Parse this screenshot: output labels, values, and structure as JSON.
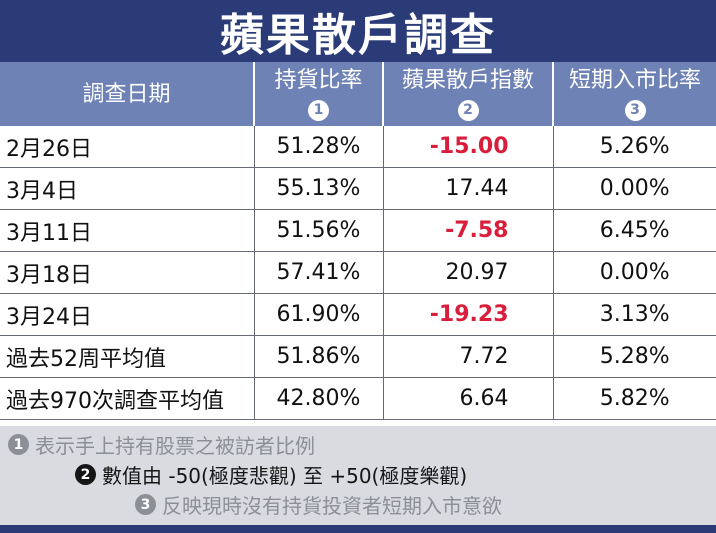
{
  "title": "蘋果散戶調查",
  "colors": {
    "title_bg": "#2a3b78",
    "header_bg": "#6e82b5",
    "negative": "#d81e3b",
    "notes_bg": "#d9dbe1"
  },
  "headers": [
    {
      "label": "調查日期",
      "badge": ""
    },
    {
      "label": "持貨比率",
      "badge": "1"
    },
    {
      "label": "蘋果散戶指數",
      "badge": "2"
    },
    {
      "label": "短期入市比率",
      "badge": "3"
    }
  ],
  "rows": [
    {
      "date": "2月26日",
      "holding": "51.28%",
      "index": "-15.00",
      "entry": "5.26%"
    },
    {
      "date": "3月4日",
      "holding": "55.13%",
      "index": "17.44",
      "entry": "0.00%"
    },
    {
      "date": "3月11日",
      "holding": "51.56%",
      "index": "-7.58",
      "entry": "6.45%"
    },
    {
      "date": "3月18日",
      "holding": "57.41%",
      "index": "20.97",
      "entry": "0.00%"
    },
    {
      "date": "3月24日",
      "holding": "61.90%",
      "index": "-19.23",
      "entry": "3.13%"
    },
    {
      "date": "過去52周平均值",
      "holding": "51.86%",
      "index": "7.72",
      "entry": "5.28%"
    },
    {
      "date": "過去970次調查平均值",
      "holding": "42.80%",
      "index": "6.64",
      "entry": "5.82%"
    }
  ],
  "notes": [
    {
      "badge": "1",
      "text": "表示手上持有股票之被訪者比例"
    },
    {
      "badge": "2",
      "text": "數值由 -50(極度悲觀) 至 +50(極度樂觀)"
    },
    {
      "badge": "3",
      "text": "反映現時沒有持貨投資者短期入市意欲"
    }
  ]
}
